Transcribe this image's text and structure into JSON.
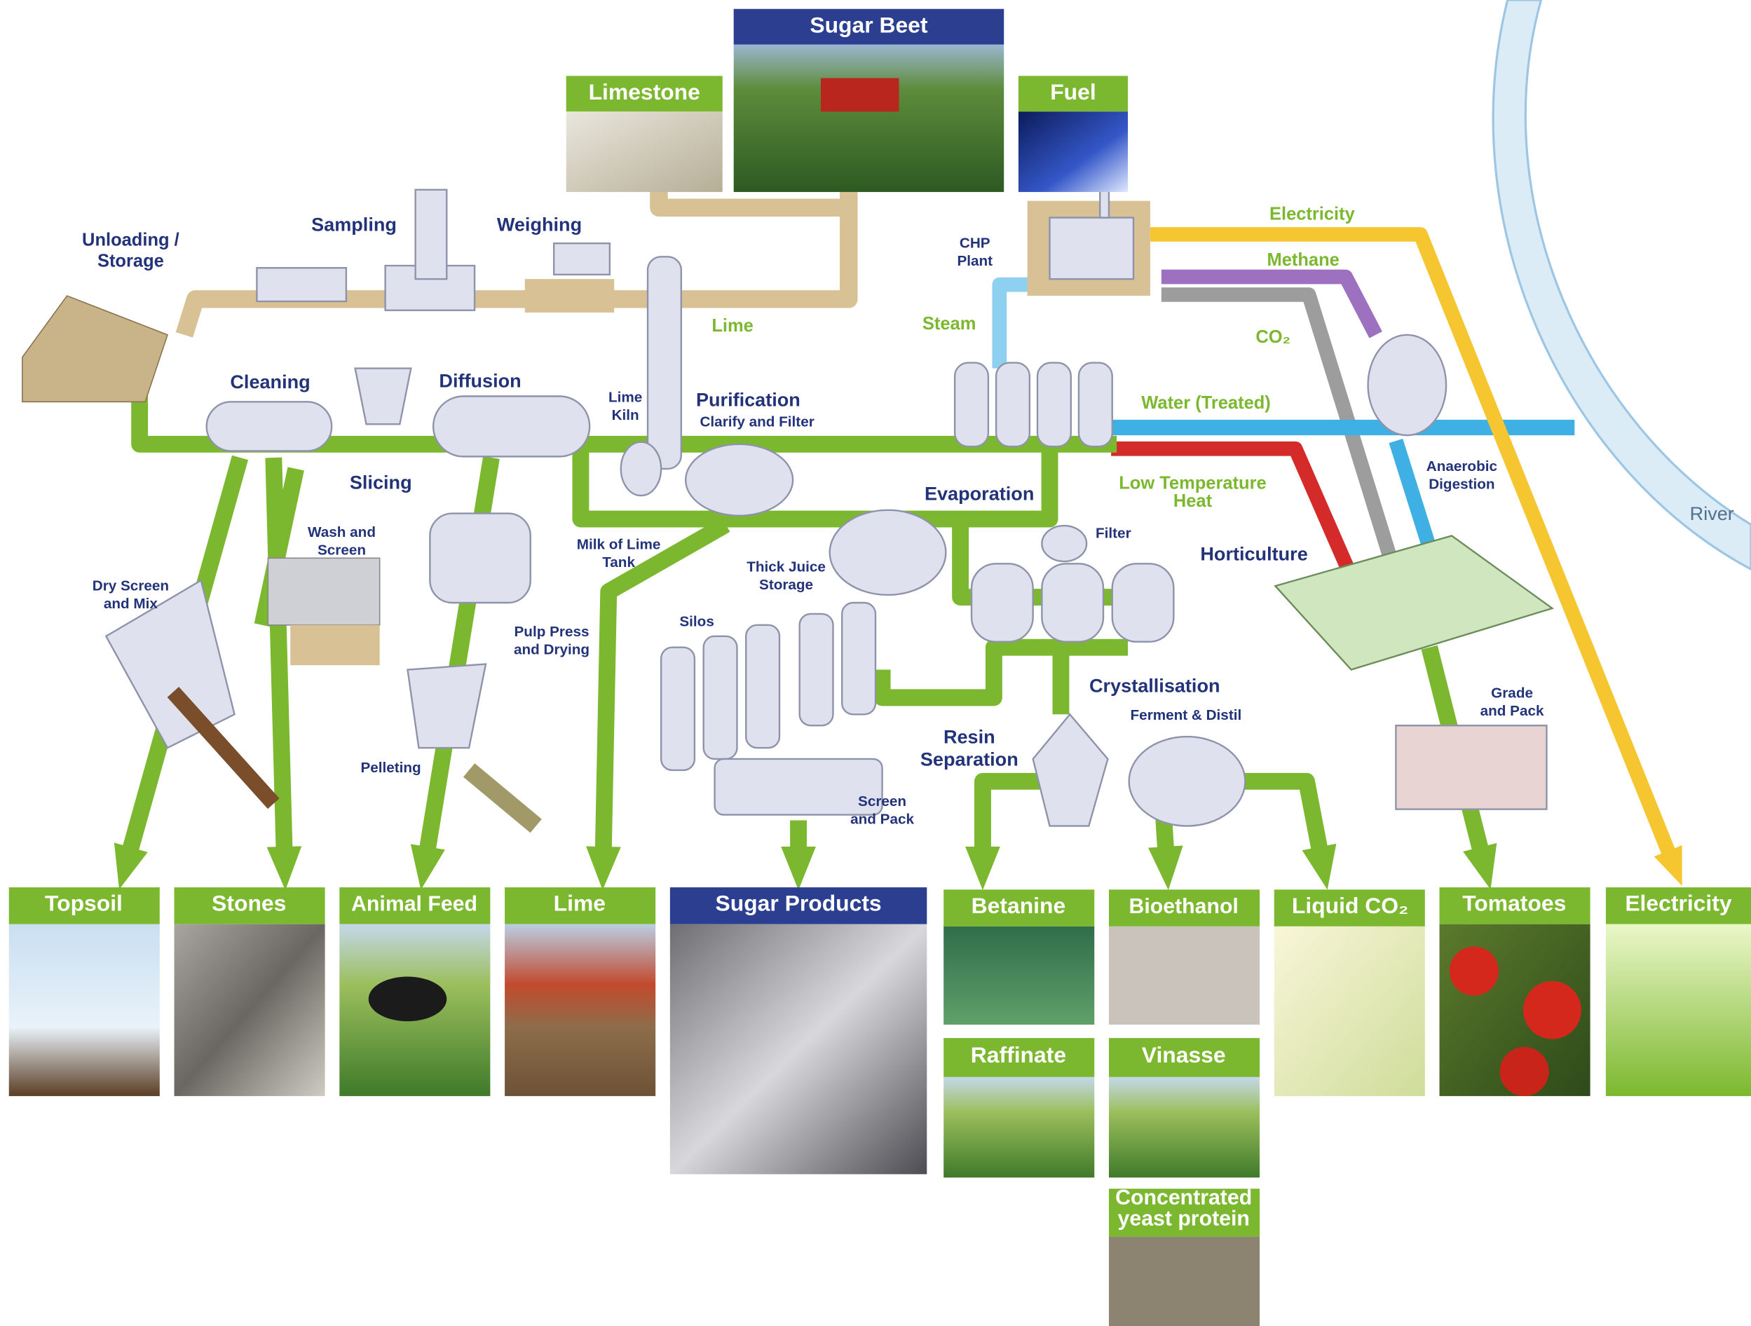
{
  "inputs": [
    {
      "label": "Sugar Beet"
    },
    {
      "label": "Limestone"
    },
    {
      "label": "Fuel"
    }
  ],
  "processes": [
    {
      "lines": [
        "Unloading /",
        "Storage"
      ]
    },
    {
      "lines": [
        "Sampling"
      ]
    },
    {
      "lines": [
        "Weighing"
      ]
    },
    {
      "lines": [
        "Cleaning"
      ]
    },
    {
      "lines": [
        "Slicing"
      ]
    },
    {
      "lines": [
        "Diffusion"
      ]
    },
    {
      "lines": [
        "Wash and",
        "Screen"
      ]
    },
    {
      "lines": [
        "Dry Screen",
        "and Mix"
      ]
    },
    {
      "lines": [
        "Pulp Press",
        "and Drying"
      ]
    },
    {
      "lines": [
        "Pelleting"
      ]
    },
    {
      "lines": [
        "Lime",
        "Kiln"
      ]
    },
    {
      "lines": [
        "Purification"
      ]
    },
    {
      "lines": [
        "Clarify and Filter"
      ]
    },
    {
      "lines": [
        "Milk of Lime",
        "Tank"
      ]
    },
    {
      "lines": [
        "Thick Juice",
        "Storage"
      ]
    },
    {
      "lines": [
        "Silos"
      ]
    },
    {
      "lines": [
        "Screen",
        "and Pack"
      ]
    },
    {
      "lines": [
        "CHP",
        "Plant"
      ]
    },
    {
      "lines": [
        "Evaporation"
      ]
    },
    {
      "lines": [
        "Filter"
      ]
    },
    {
      "lines": [
        "Crystallisation"
      ]
    },
    {
      "lines": [
        "Ferment & Distil"
      ]
    },
    {
      "lines": [
        "Resin",
        "Separation"
      ]
    },
    {
      "lines": [
        "Horticulture"
      ]
    },
    {
      "lines": [
        "Anaerobic",
        "Digestion"
      ]
    },
    {
      "lines": [
        "Grade",
        "and Pack"
      ]
    }
  ],
  "flows": [
    {
      "lines": [
        "Lime"
      ]
    },
    {
      "lines": [
        "Steam"
      ]
    },
    {
      "lines": [
        "Electricity"
      ]
    },
    {
      "lines": [
        "Methane"
      ]
    },
    {
      "lines": [
        "CO₂"
      ]
    },
    {
      "lines": [
        "Water (Treated)"
      ]
    },
    {
      "lines": [
        "Low Temperature",
        "Heat"
      ]
    }
  ],
  "river": "River",
  "outputs": [
    {
      "lines": [
        "Topsoil"
      ]
    },
    {
      "lines": [
        "Stones"
      ]
    },
    {
      "lines": [
        "Animal Feed"
      ]
    },
    {
      "lines": [
        "Lime"
      ]
    },
    {
      "lines": [
        "Sugar Products"
      ]
    },
    {
      "lines": [
        "Betanine"
      ]
    },
    {
      "lines": [
        "Bioethanol"
      ]
    },
    {
      "lines": [
        "Liquid CO₂"
      ]
    },
    {
      "lines": [
        "Tomatoes"
      ]
    },
    {
      "lines": [
        "Electricity"
      ]
    },
    {
      "lines": [
        "Raffinate"
      ]
    },
    {
      "lines": [
        "Vinasse"
      ]
    },
    {
      "lines": [
        "Concentrated",
        "yeast protein"
      ]
    }
  ]
}
